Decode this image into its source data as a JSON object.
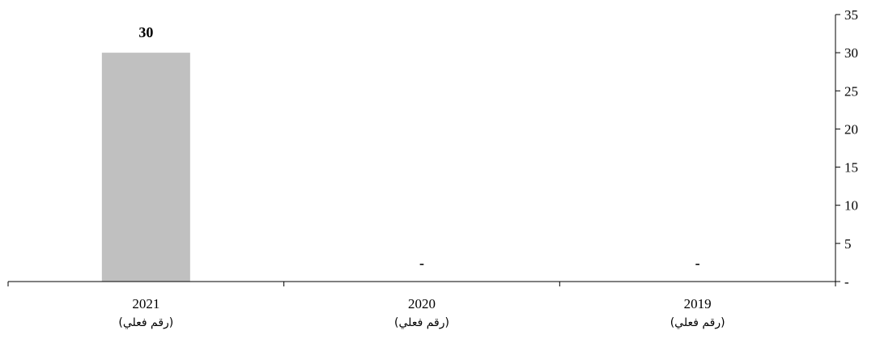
{
  "chart_data": {
    "type": "bar",
    "categories": [
      {
        "year": "2021",
        "note": "(رقم فعلي)"
      },
      {
        "year": "2020",
        "note": "(رقم فعلي)"
      },
      {
        "year": "2019",
        "note": "(رقم فعلي)"
      }
    ],
    "values": [
      30,
      0,
      0
    ],
    "data_labels": [
      "30",
      "-",
      "-"
    ],
    "y_ticks": [
      {
        "value": 0,
        "label": "-"
      },
      {
        "value": 5,
        "label": "5"
      },
      {
        "value": 10,
        "label": "10"
      },
      {
        "value": 15,
        "label": "15"
      },
      {
        "value": 20,
        "label": "20"
      },
      {
        "value": 25,
        "label": "25"
      },
      {
        "value": 30,
        "label": "30"
      },
      {
        "value": 35,
        "label": "35"
      }
    ],
    "ylim": [
      0,
      35
    ],
    "y_axis_side": "right",
    "grid": false,
    "bar_color": "#c0c0c0",
    "axis_color": "#000000"
  }
}
